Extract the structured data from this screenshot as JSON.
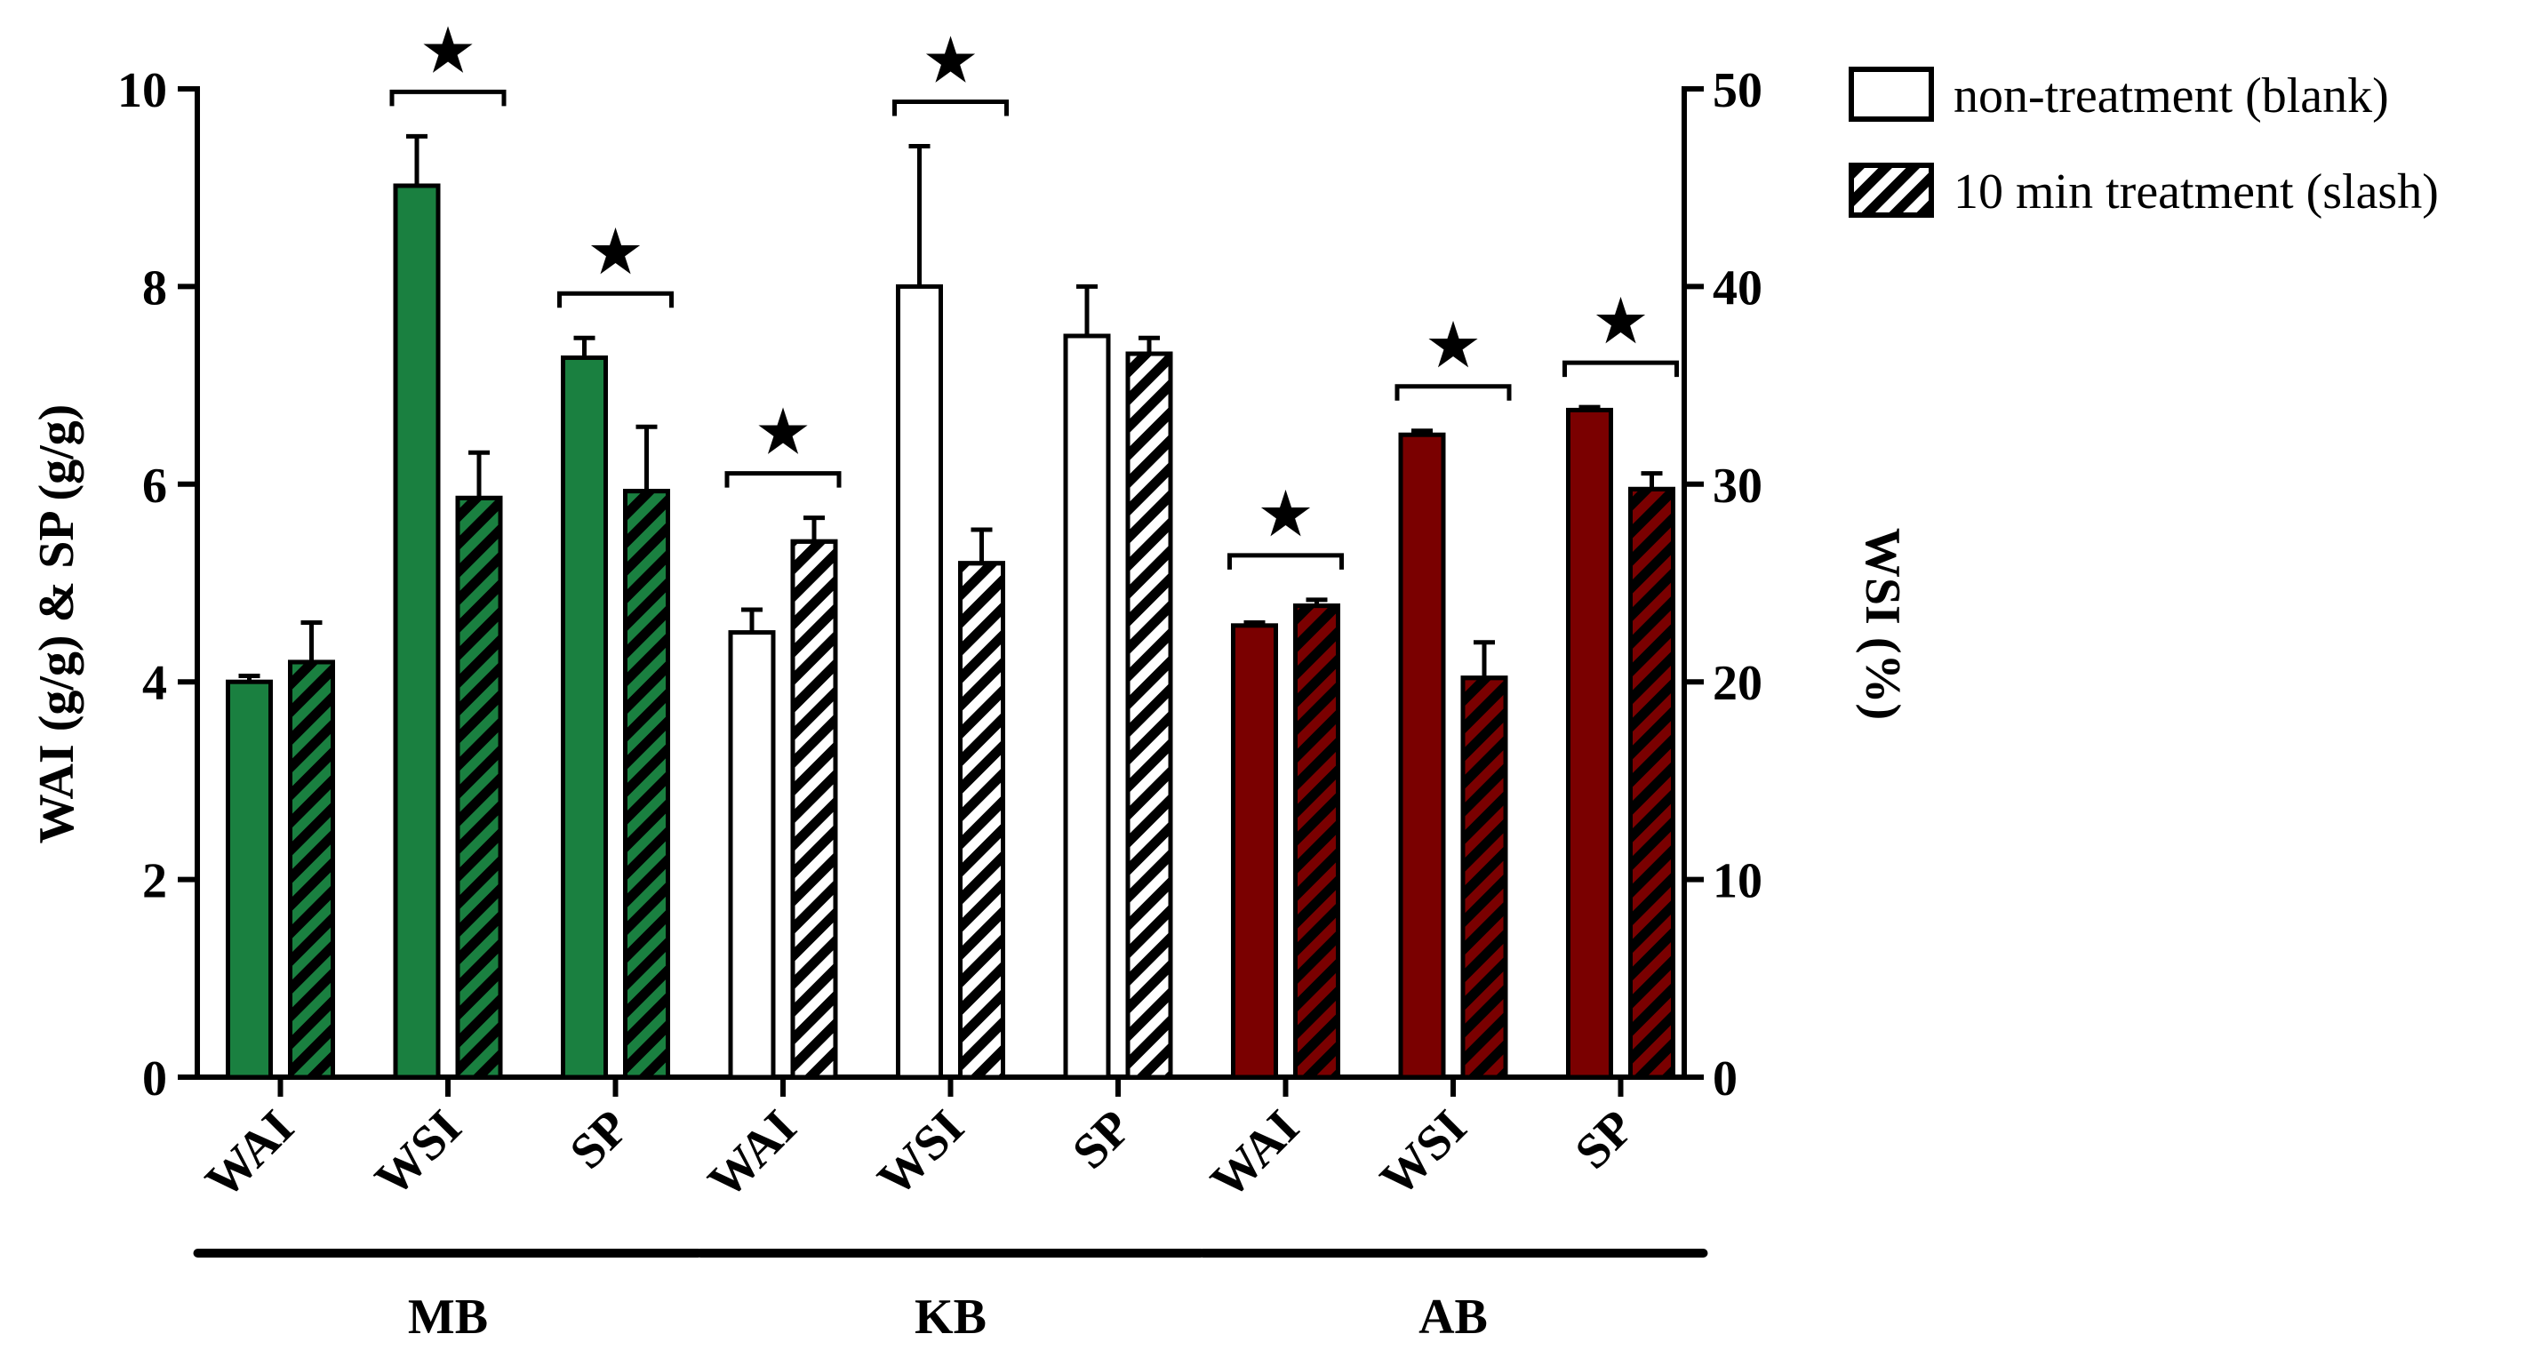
{
  "chart_data": {
    "type": "bar",
    "title": "",
    "ylabel_left": "WAI (g/g) & SP (g/g)",
    "ylabel_right": "WSI (%)",
    "ylim_left": [
      0,
      10
    ],
    "ylim_right": [
      0,
      50
    ],
    "yticks_left": [
      "0",
      "2",
      "4",
      "6",
      "8",
      "10"
    ],
    "yticks_right": [
      "0",
      "10",
      "20",
      "30",
      "40",
      "50"
    ],
    "legend": [
      {
        "label": "non-treatment (blank)",
        "pattern": "solid"
      },
      {
        "label": "10 min treatment (slash)",
        "pattern": "hatched"
      }
    ],
    "legend_position": "top-right",
    "groups": [
      {
        "name": "MB",
        "color": "#1a8040",
        "categories": [
          {
            "label": "WAI",
            "axis": "left",
            "values": [
              4.0,
              4.2
            ],
            "errors": [
              0.06,
              0.4
            ],
            "significant": false
          },
          {
            "label": "WSI",
            "axis": "right",
            "values": [
              45.1,
              29.3
            ],
            "errors": [
              2.5,
              2.3
            ],
            "significant": true
          },
          {
            "label": "SP",
            "axis": "left",
            "values": [
              7.28,
              5.93
            ],
            "errors": [
              0.2,
              0.65
            ],
            "significant": true
          }
        ]
      },
      {
        "name": "KB",
        "color": "#ffffff",
        "categories": [
          {
            "label": "WAI",
            "axis": "left",
            "values": [
              4.5,
              5.42
            ],
            "errors": [
              0.23,
              0.24
            ],
            "significant": true
          },
          {
            "label": "WSI",
            "axis": "right",
            "values": [
              40.0,
              26.0
            ],
            "errors": [
              7.1,
              1.7
            ],
            "significant": true
          },
          {
            "label": "SP",
            "axis": "left",
            "values": [
              7.5,
              7.32
            ],
            "errors": [
              0.5,
              0.16
            ],
            "significant": false
          }
        ]
      },
      {
        "name": "AB",
        "color": "#7a0000",
        "categories": [
          {
            "label": "WAI",
            "axis": "left",
            "values": [
              4.57,
              4.77
            ],
            "errors": [
              0.03,
              0.06
            ],
            "significant": true
          },
          {
            "label": "WSI",
            "axis": "right",
            "values": [
              32.5,
              20.2
            ],
            "errors": [
              0.2,
              1.8
            ],
            "significant": true
          },
          {
            "label": "SP",
            "axis": "left",
            "values": [
              6.75,
              5.95
            ],
            "errors": [
              0.03,
              0.16
            ],
            "significant": true
          }
        ]
      }
    ],
    "significance_marker": "★"
  }
}
